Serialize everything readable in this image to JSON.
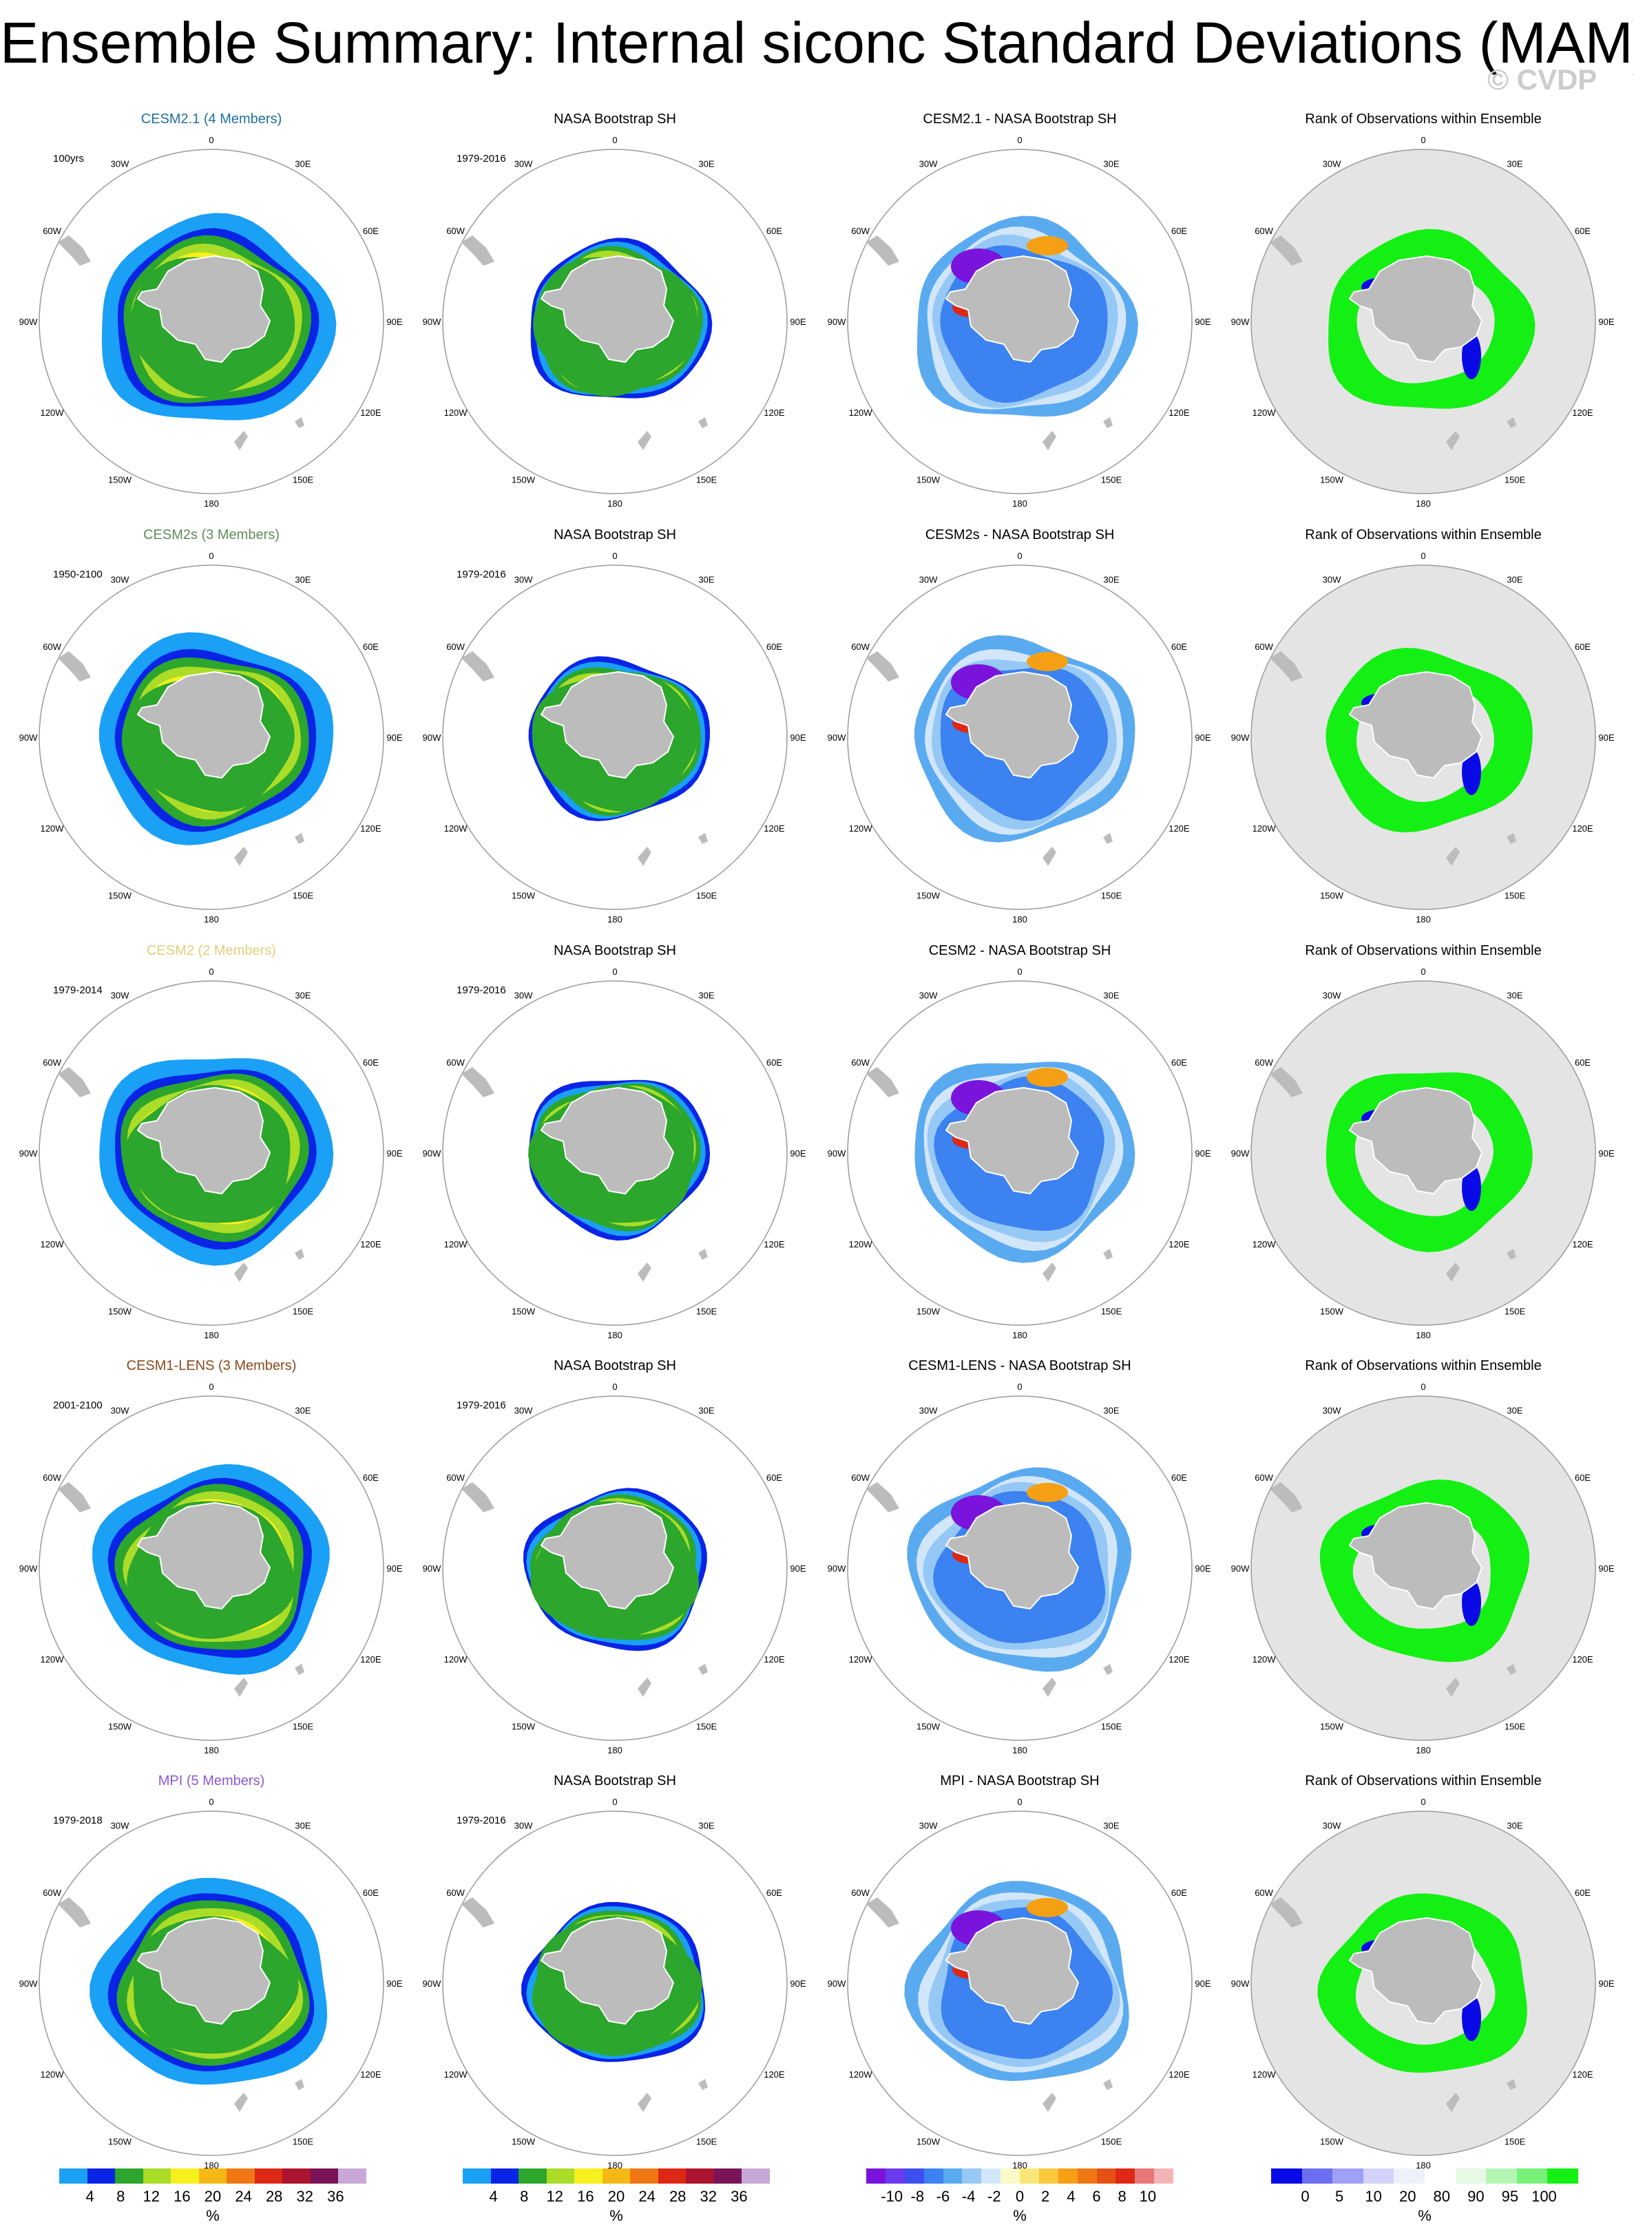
{
  "page": {
    "title": "Ensemble Summary: Internal siconc Standard Deviations (MAM)",
    "watermark": "© CVDP"
  },
  "lon_labels": [
    "0",
    "30E",
    "60E",
    "90E",
    "120E",
    "150E",
    "180",
    "150W",
    "120W",
    "90W",
    "60W",
    "30W"
  ],
  "colors": {
    "land": "#bcbcbc",
    "ocean": "#ffffff",
    "rank_background": "#e4e4e4"
  },
  "rows": [
    {
      "model": "CESM2.1 (4 Members)",
      "model_color": "#1f6e9e",
      "period": "100yrs",
      "obs_title": "NASA Bootstrap SH",
      "obs_period": "1979-2016",
      "diff_title": "CESM2.1 - NASA Bootstrap SH",
      "rank_title": "Rank of Observations within Ensemble"
    },
    {
      "model": "CESM2s (3 Members)",
      "model_color": "#5f8a5b",
      "period": "1950-2100",
      "obs_title": "NASA Bootstrap SH",
      "obs_period": "1979-2016",
      "diff_title": "CESM2s - NASA Bootstrap SH",
      "rank_title": "Rank of Observations within Ensemble"
    },
    {
      "model": "CESM2 (2 Members)",
      "model_color": "#e0cf7a",
      "period": "1979-2014",
      "obs_title": "NASA Bootstrap SH",
      "obs_period": "1979-2016",
      "diff_title": "CESM2 - NASA Bootstrap SH",
      "rank_title": "Rank of Observations within Ensemble"
    },
    {
      "model": "CESM1-LENS (3 Members)",
      "model_color": "#8a4a1c",
      "period": "2001-2100",
      "obs_title": "NASA Bootstrap SH",
      "obs_period": "1979-2016",
      "diff_title": "CESM1-LENS - NASA Bootstrap SH",
      "rank_title": "Rank of Observations within Ensemble"
    },
    {
      "model": "MPI (5 Members)",
      "model_color": "#8a5ad8",
      "period": "1979-2018",
      "obs_title": "NASA Bootstrap SH",
      "obs_period": "1979-2016",
      "diff_title": "MPI - NASA Bootstrap SH",
      "rank_title": "Rank of Observations within Ensemble"
    }
  ],
  "colorbars": [
    {
      "name": "model-std",
      "unit": "%",
      "ticks": [
        "4",
        "8",
        "12",
        "16",
        "20",
        "24",
        "28",
        "32",
        "36"
      ],
      "colors": [
        "#1aa0f5",
        "#0a24e6",
        "#2ca62c",
        "#aadc28",
        "#f5f01e",
        "#f5b814",
        "#f07814",
        "#dc2814",
        "#aa1430",
        "#7a1458",
        "#c8a8d8"
      ]
    },
    {
      "name": "obs-std",
      "unit": "%",
      "ticks": [
        "4",
        "8",
        "12",
        "16",
        "20",
        "24",
        "28",
        "32",
        "36"
      ],
      "colors": [
        "#1aa0f5",
        "#0a24e6",
        "#2ca62c",
        "#aadc28",
        "#f5f01e",
        "#f5b814",
        "#f07814",
        "#dc2814",
        "#aa1430",
        "#7a1458",
        "#c8a8d8"
      ]
    },
    {
      "name": "difference",
      "unit": "%",
      "ticks": [
        "-10",
        "-8",
        "-6",
        "-4",
        "-2",
        "0",
        "2",
        "4",
        "6",
        "8",
        "10"
      ],
      "colors": [
        "#7a14dc",
        "#6a3cf0",
        "#3c50f0",
        "#3c82f0",
        "#5aaaf0",
        "#96c8f5",
        "#d2e6fa",
        "#fafac8",
        "#fae678",
        "#fac83c",
        "#f5a014",
        "#f07814",
        "#e65014",
        "#dc2814",
        "#e87878",
        "#f5b4b4"
      ]
    },
    {
      "name": "rank",
      "unit": "%",
      "ticks": [
        "0",
        "5",
        "10",
        "20",
        "80",
        "90",
        "95",
        "100"
      ],
      "colors": [
        "#0a0ae6",
        "#6e6ef0",
        "#a0a0f5",
        "#d2d2fa",
        "#f0f0fc",
        "#ffffff",
        "#e6fae6",
        "#b4f5b4",
        "#78f078",
        "#14f014"
      ]
    }
  ]
}
